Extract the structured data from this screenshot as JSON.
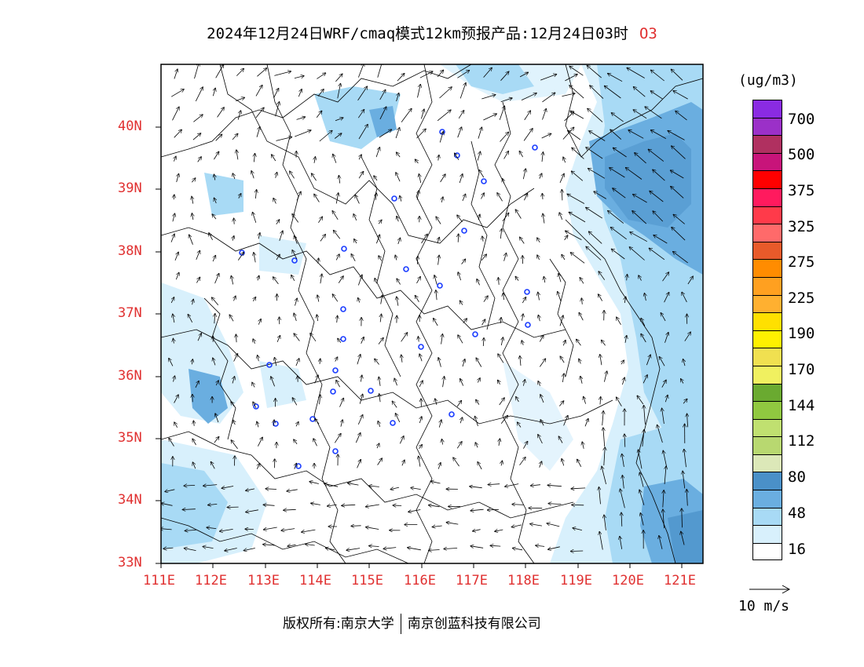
{
  "title": {
    "main": "2024年12月24日WRF/cmaq模式12km预报产品:12月24日03时",
    "species": "O3"
  },
  "map": {
    "lat_labels": [
      "40N",
      "39N",
      "38N",
      "37N",
      "36N",
      "35N",
      "34N",
      "33N"
    ],
    "lon_labels": [
      "111E",
      "112E",
      "113E",
      "114E",
      "115E",
      "116E",
      "117E",
      "118E",
      "119E",
      "120E",
      "121E"
    ]
  },
  "legend": {
    "unit": "(ug/m3)",
    "levels": [
      "700",
      "500",
      "375",
      "325",
      "275",
      "225",
      "190",
      "170",
      "144",
      "112",
      "80",
      "48",
      "16"
    ],
    "colors": [
      "#8a2be2",
      "#9b30c8",
      "#b03060",
      "#c8147a",
      "#ff0000",
      "#ff1a5e",
      "#ff3a4a",
      "#ff6a6a",
      "#e85a2a",
      "#ff8c00",
      "#ffa020",
      "#ffb030",
      "#ffe000",
      "#fff000",
      "#f0e050",
      "#f0f060",
      "#6aaa30",
      "#90c840",
      "#c0e070",
      "#b8d870",
      "#dce8b8",
      "#4a90c8",
      "#6aaee0",
      "#a8daf5",
      "#d8f0fc",
      "#ffffff"
    ],
    "wind_ref": "10 m/s"
  },
  "footer": {
    "copyright": "版权所有:南京大学",
    "company": "南京创蓝科技有限公司"
  }
}
